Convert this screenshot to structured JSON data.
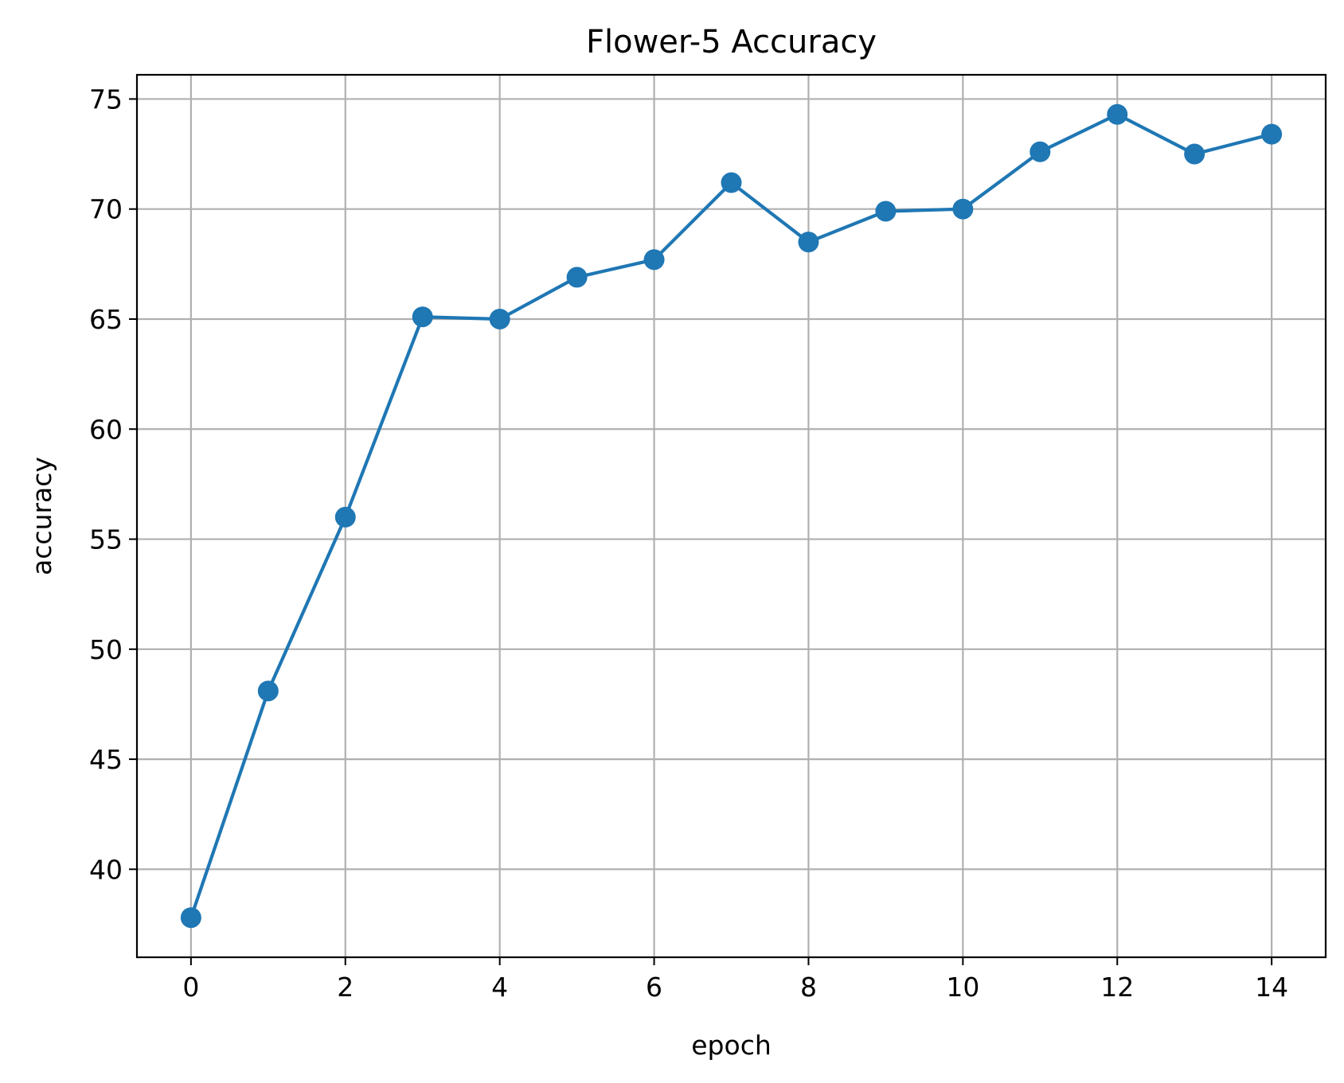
{
  "chart_data": {
    "type": "line",
    "title": "Flower-5 Accuracy",
    "xlabel": "epoch",
    "ylabel": "accuracy",
    "x": [
      0,
      1,
      2,
      3,
      4,
      5,
      6,
      7,
      8,
      9,
      10,
      11,
      12,
      13,
      14
    ],
    "series": [
      {
        "values": [
          37.8,
          48.1,
          56.0,
          65.1,
          65.0,
          66.9,
          67.7,
          71.2,
          68.5,
          69.9,
          70.0,
          72.6,
          74.3,
          72.5,
          73.4
        ],
        "color": "#1f77b4",
        "marker": "circle"
      }
    ],
    "xlim": [
      -0.7,
      14.7
    ],
    "ylim": [
      36.0,
      76.1
    ],
    "xticks": [
      0,
      2,
      4,
      6,
      8,
      10,
      12,
      14
    ],
    "yticks": [
      40,
      45,
      50,
      55,
      60,
      65,
      70,
      75
    ],
    "grid": true,
    "grid_color": "#b0b0b0"
  }
}
